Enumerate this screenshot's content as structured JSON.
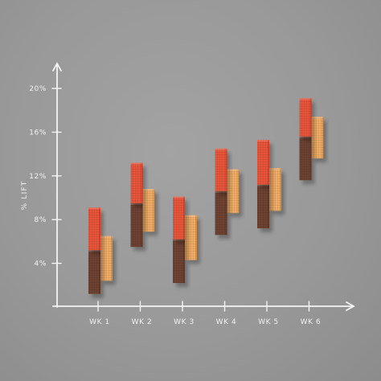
{
  "chart_data": {
    "type": "bar",
    "subtype": "floating-range",
    "title": "",
    "xlabel": "",
    "ylabel": "% LIFT",
    "ylim": [
      0,
      20
    ],
    "yticks": [
      "4%",
      "8%",
      "12%",
      "16%",
      "20%"
    ],
    "categories": [
      "WK 1",
      "WK 2",
      "WK 3",
      "WK 4",
      "WK 5",
      "WK 6"
    ],
    "grid": false,
    "legend": "none",
    "series": [
      {
        "color": "#6e4330",
        "values": [
          [
            1.2,
            5.2
          ],
          [
            5.5,
            9.5
          ],
          [
            2.2,
            6.2
          ],
          [
            6.6,
            10.6
          ],
          [
            7.2,
            11.2
          ],
          [
            11.6,
            15.6
          ]
        ]
      },
      {
        "color": "#e8553a",
        "values": [
          [
            5.2,
            9.1
          ],
          [
            9.5,
            13.2
          ],
          [
            6.2,
            10.1
          ],
          [
            10.6,
            14.5
          ],
          [
            11.2,
            15.3
          ],
          [
            15.6,
            19.1
          ]
        ]
      },
      {
        "color": "#f2ad66",
        "values": [
          [
            2.4,
            6.5
          ],
          [
            6.9,
            10.8
          ],
          [
            4.3,
            8.4
          ],
          [
            8.6,
            12.6
          ],
          [
            8.8,
            12.7
          ],
          [
            13.6,
            17.4
          ]
        ]
      }
    ]
  }
}
